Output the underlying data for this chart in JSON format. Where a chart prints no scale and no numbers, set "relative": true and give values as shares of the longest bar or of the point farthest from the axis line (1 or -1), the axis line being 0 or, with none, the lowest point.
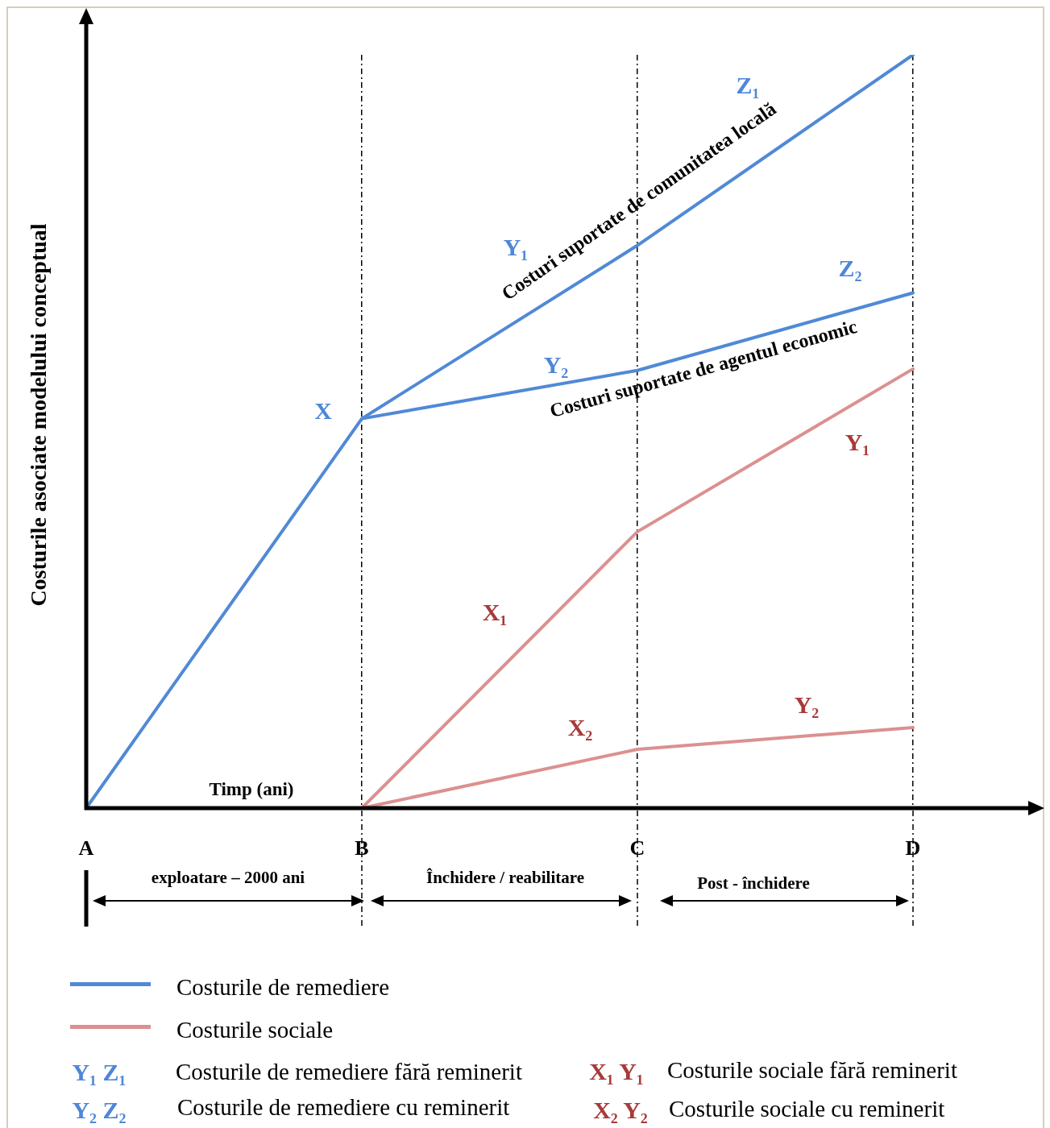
{
  "chart_data": {
    "type": "line",
    "relative": true,
    "ylabel": "Costurile asociate modelului conceptual",
    "xlabel": "Timp (ani)",
    "categories": [
      "A",
      "B",
      "C",
      "D"
    ],
    "series": [
      {
        "name": "Costurile de remediere",
        "color": "#5089d6",
        "values": [
          0,
          0.517,
          0.747,
          1
        ]
      },
      {
        "color": "#5089d6",
        "values": [
          null,
          0.517,
          0.581,
          0.684
        ]
      },
      {
        "name": "Costurile sociale",
        "color": "#dc9090",
        "values": [
          null,
          0,
          0.367,
          0.583
        ]
      },
      {
        "color": "#dc9090",
        "values": [
          null,
          0,
          0.078,
          0.107
        ]
      }
    ],
    "grid": "x",
    "legend": "bottom",
    "annotations": [
      "X",
      "Y₁",
      "Z₁",
      "Y₂",
      "Z₂",
      "Costuri suportate de comunitatea locală",
      "Costuri suportate de agentul economic",
      "X₁",
      "Y₁",
      "X₂",
      "Y₂",
      "exploatare – 2000 ani",
      "Închidere / reabilitare",
      "Post - închidere",
      "Y₁  Z₁",
      "Costurile de remediere fără reminerit",
      "Y₂ Z₂",
      "Costurile de remediere cu reminerit",
      "X₁  Y₁",
      "Costurile sociale fără reminerit",
      "X₂ Y₂",
      "Costurile sociale cu reminerit"
    ]
  }
}
